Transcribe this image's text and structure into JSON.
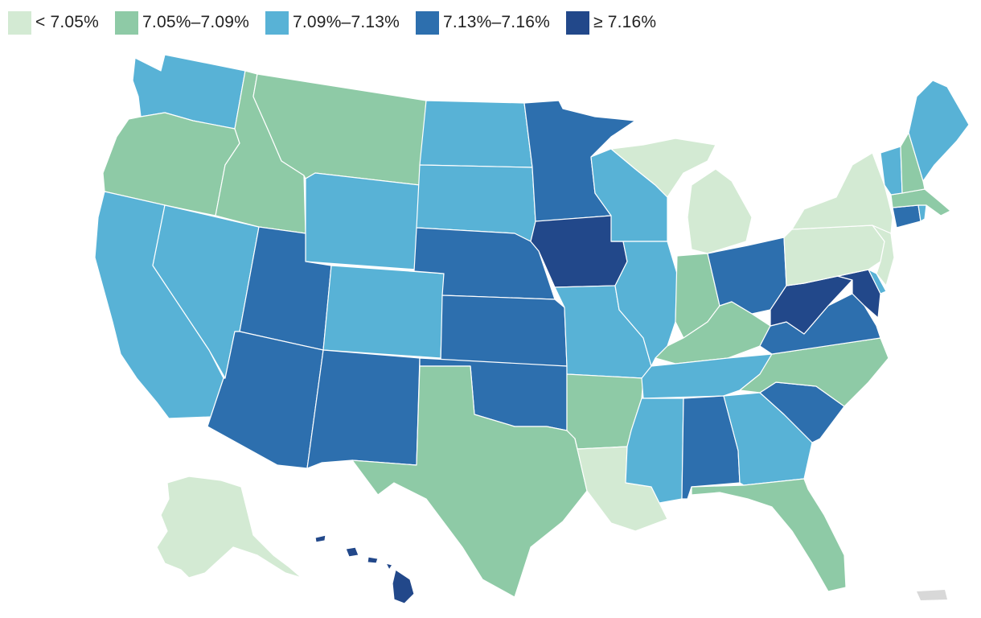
{
  "legend": [
    {
      "label": "< 7.05%",
      "color": "#d3ead3"
    },
    {
      "label": "7.05%–7.09%",
      "color": "#8ecaa6"
    },
    {
      "label": "7.09%–7.13%",
      "color": "#58b2d6"
    },
    {
      "label": "7.13%–7.16%",
      "color": "#2d6fae"
    },
    {
      "label": "≥ 7.16%",
      "color": "#22488a"
    }
  ],
  "map": {
    "type": "choropleth",
    "region": "United States",
    "states": {
      "WA": 2,
      "OR": 1,
      "CA": 2,
      "NV": 2,
      "ID": 1,
      "MT": 1,
      "WY": 2,
      "UT": 3,
      "AZ": 3,
      "CO": 2,
      "NM": 3,
      "ND": 2,
      "SD": 2,
      "NE": 3,
      "KS": 3,
      "OK": 3,
      "TX": 1,
      "MN": 3,
      "IA": 4,
      "MO": 2,
      "AR": 1,
      "LA": 0,
      "WI": 2,
      "IL": 2,
      "MI": 0,
      "IN": 1,
      "OH": 3,
      "KY": 1,
      "TN": 2,
      "MS": 2,
      "AL": 3,
      "GA": 2,
      "FL": 1,
      "SC": 3,
      "NC": 1,
      "VA": 3,
      "WV": 4,
      "MD": 4,
      "DE": 2,
      "PA": 0,
      "NJ": 0,
      "NY": 0,
      "CT": 3,
      "RI": 2,
      "MA": 1,
      "VT": 2,
      "NH": 1,
      "ME": 2,
      "AK": 0,
      "HI": 4,
      "PR": null
    },
    "no_data_color": "#d8d8d8"
  }
}
